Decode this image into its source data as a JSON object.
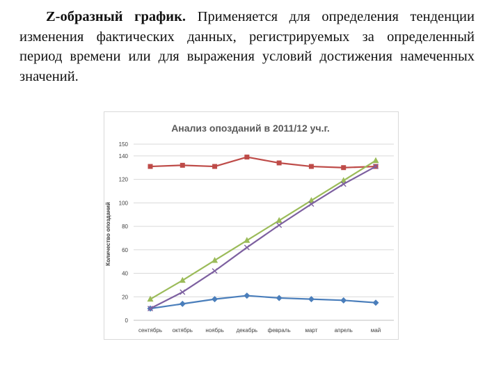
{
  "text": {
    "heading": "Z-образный график.",
    "body": " Применяется для определения тенденции изменения фактических данных, регистрируемых за определенный период времени или для выражения условий достижения намеченных значений."
  },
  "chart_data": {
    "type": "line",
    "title": "Анализ опозданий в 2011/12 уч.г.",
    "xlabel": "",
    "ylabel": "Количество опозданий",
    "categories": [
      "сентябрь",
      "октябрь",
      "ноябрь",
      "декабрь",
      "февраль",
      "март",
      "апрель",
      "май"
    ],
    "ylim": [
      0,
      150
    ],
    "yticks": [
      0,
      20,
      40,
      60,
      80,
      100,
      120,
      140,
      150
    ],
    "grid": true,
    "legend": "none",
    "series": [
      {
        "marker": "square",
        "color": "#be4b48",
        "values": [
          131,
          132,
          131,
          139,
          134,
          131,
          130,
          131
        ]
      },
      {
        "marker": "diamond",
        "color": "#4a7ebb",
        "values": [
          10,
          14,
          18,
          21,
          19,
          18,
          17,
          15
        ]
      },
      {
        "marker": "triangle",
        "color": "#9bbb59",
        "values": [
          18,
          34,
          51,
          68,
          85,
          102,
          119,
          136
        ]
      },
      {
        "marker": "x",
        "color": "#7d60a0",
        "values": [
          10,
          24,
          42,
          62,
          81,
          99,
          116,
          131
        ]
      }
    ]
  }
}
